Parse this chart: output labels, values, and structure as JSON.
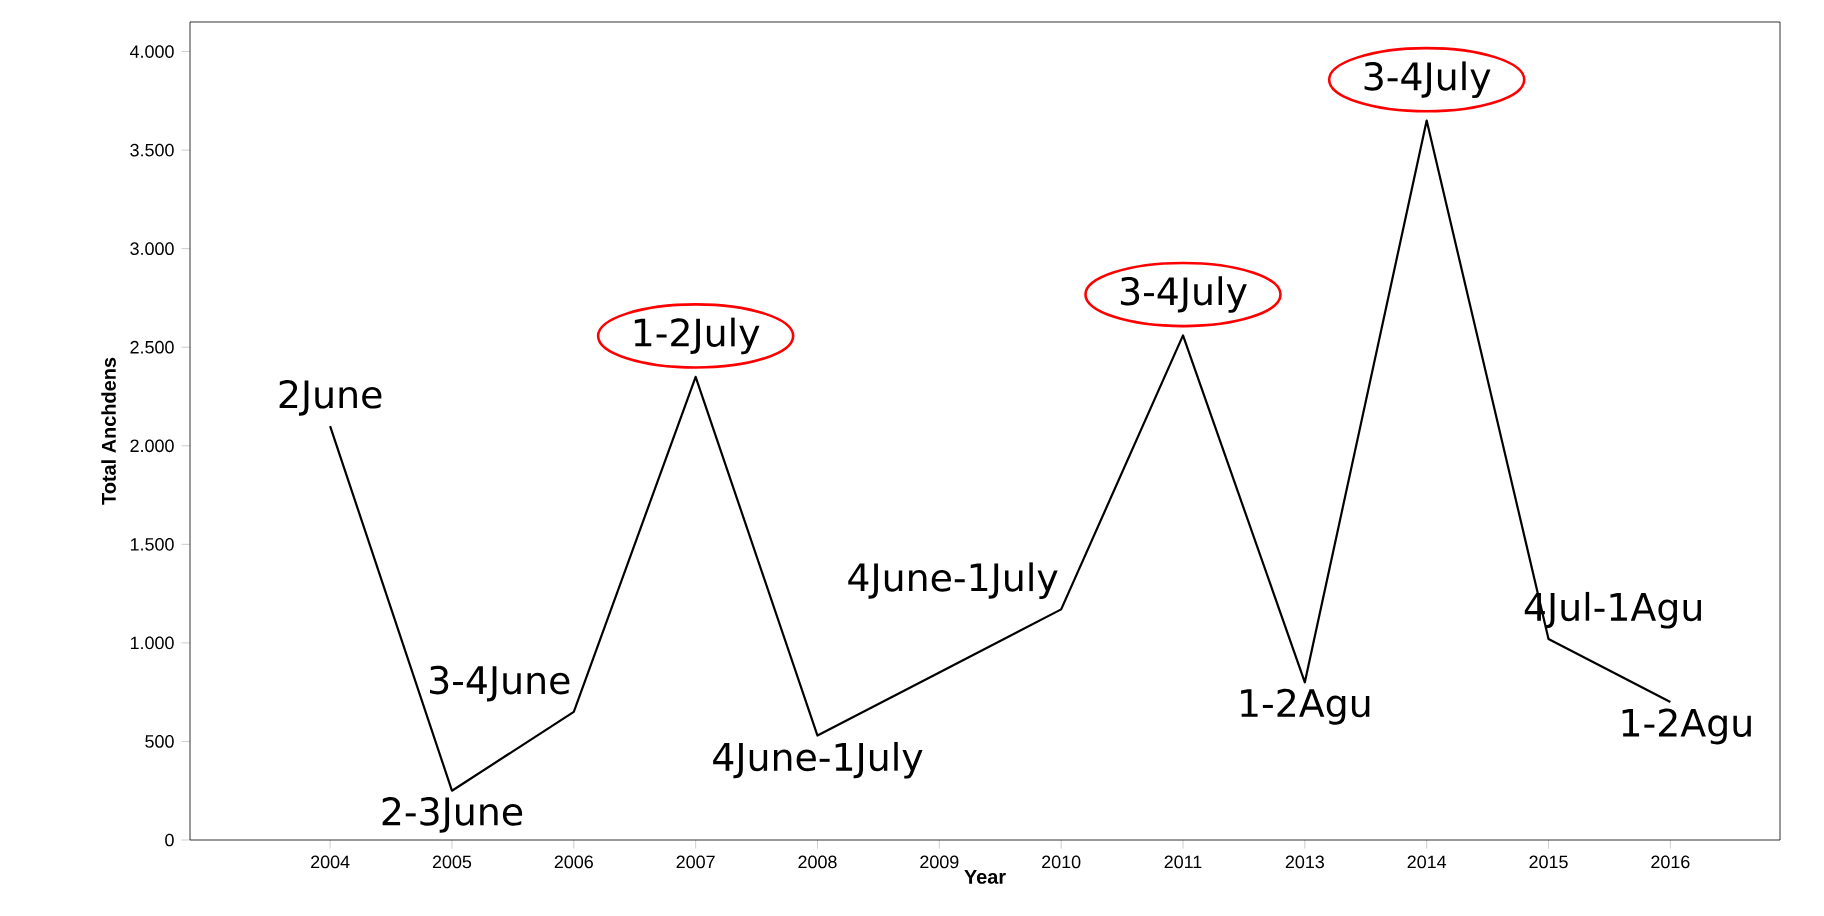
{
  "chart_data": {
    "type": "line",
    "xlabel": "Year",
    "ylabel": "Total Anchdens",
    "categories": [
      "2004",
      "2005",
      "2006",
      "2007",
      "2008",
      "2009",
      "2010",
      "2011",
      "2013",
      "2014",
      "2015",
      "2016"
    ],
    "values": [
      2100,
      250,
      650,
      2350,
      530,
      850,
      1170,
      2560,
      800,
      3650,
      1020,
      700
    ],
    "color": "#000000",
    "marker": "none",
    "grid": false,
    "ylim": [
      0,
      4150
    ],
    "yticks": [
      {
        "value": 0,
        "label": "0"
      },
      {
        "value": 500,
        "label": "500"
      },
      {
        "value": 1000,
        "label": "1.000"
      },
      {
        "value": 1500,
        "label": "1.500"
      },
      {
        "value": 2000,
        "label": "2.000"
      },
      {
        "value": 2500,
        "label": "2.500"
      },
      {
        "value": 3000,
        "label": "3.000"
      },
      {
        "value": 3500,
        "label": "3.500"
      },
      {
        "value": 4000,
        "label": "4.000"
      }
    ],
    "annotations": [
      {
        "text": "2June",
        "x": "2004",
        "y": 2100
      },
      {
        "text": "2-3June",
        "x": "2005",
        "y": 250
      },
      {
        "text": "3-4June",
        "x": "2006",
        "y": 650
      },
      {
        "text": "1-2July",
        "x": "2007",
        "y": 2350
      },
      {
        "text": "4June-1July",
        "x": "2008",
        "y": 530
      },
      {
        "text": "4June-1July",
        "x": "2010",
        "y": 1170
      },
      {
        "text": "3-4July",
        "x": "2011",
        "y": 2560
      },
      {
        "text": "1-2Agu",
        "x": "2013",
        "y": 800
      },
      {
        "text": "3-4July",
        "x": "2014",
        "y": 3650
      },
      {
        "text": "4Jul-1Agu",
        "x": "2015",
        "y": 1020
      },
      {
        "text": "1-2Agu",
        "x": "2016",
        "y": 700
      }
    ]
  }
}
